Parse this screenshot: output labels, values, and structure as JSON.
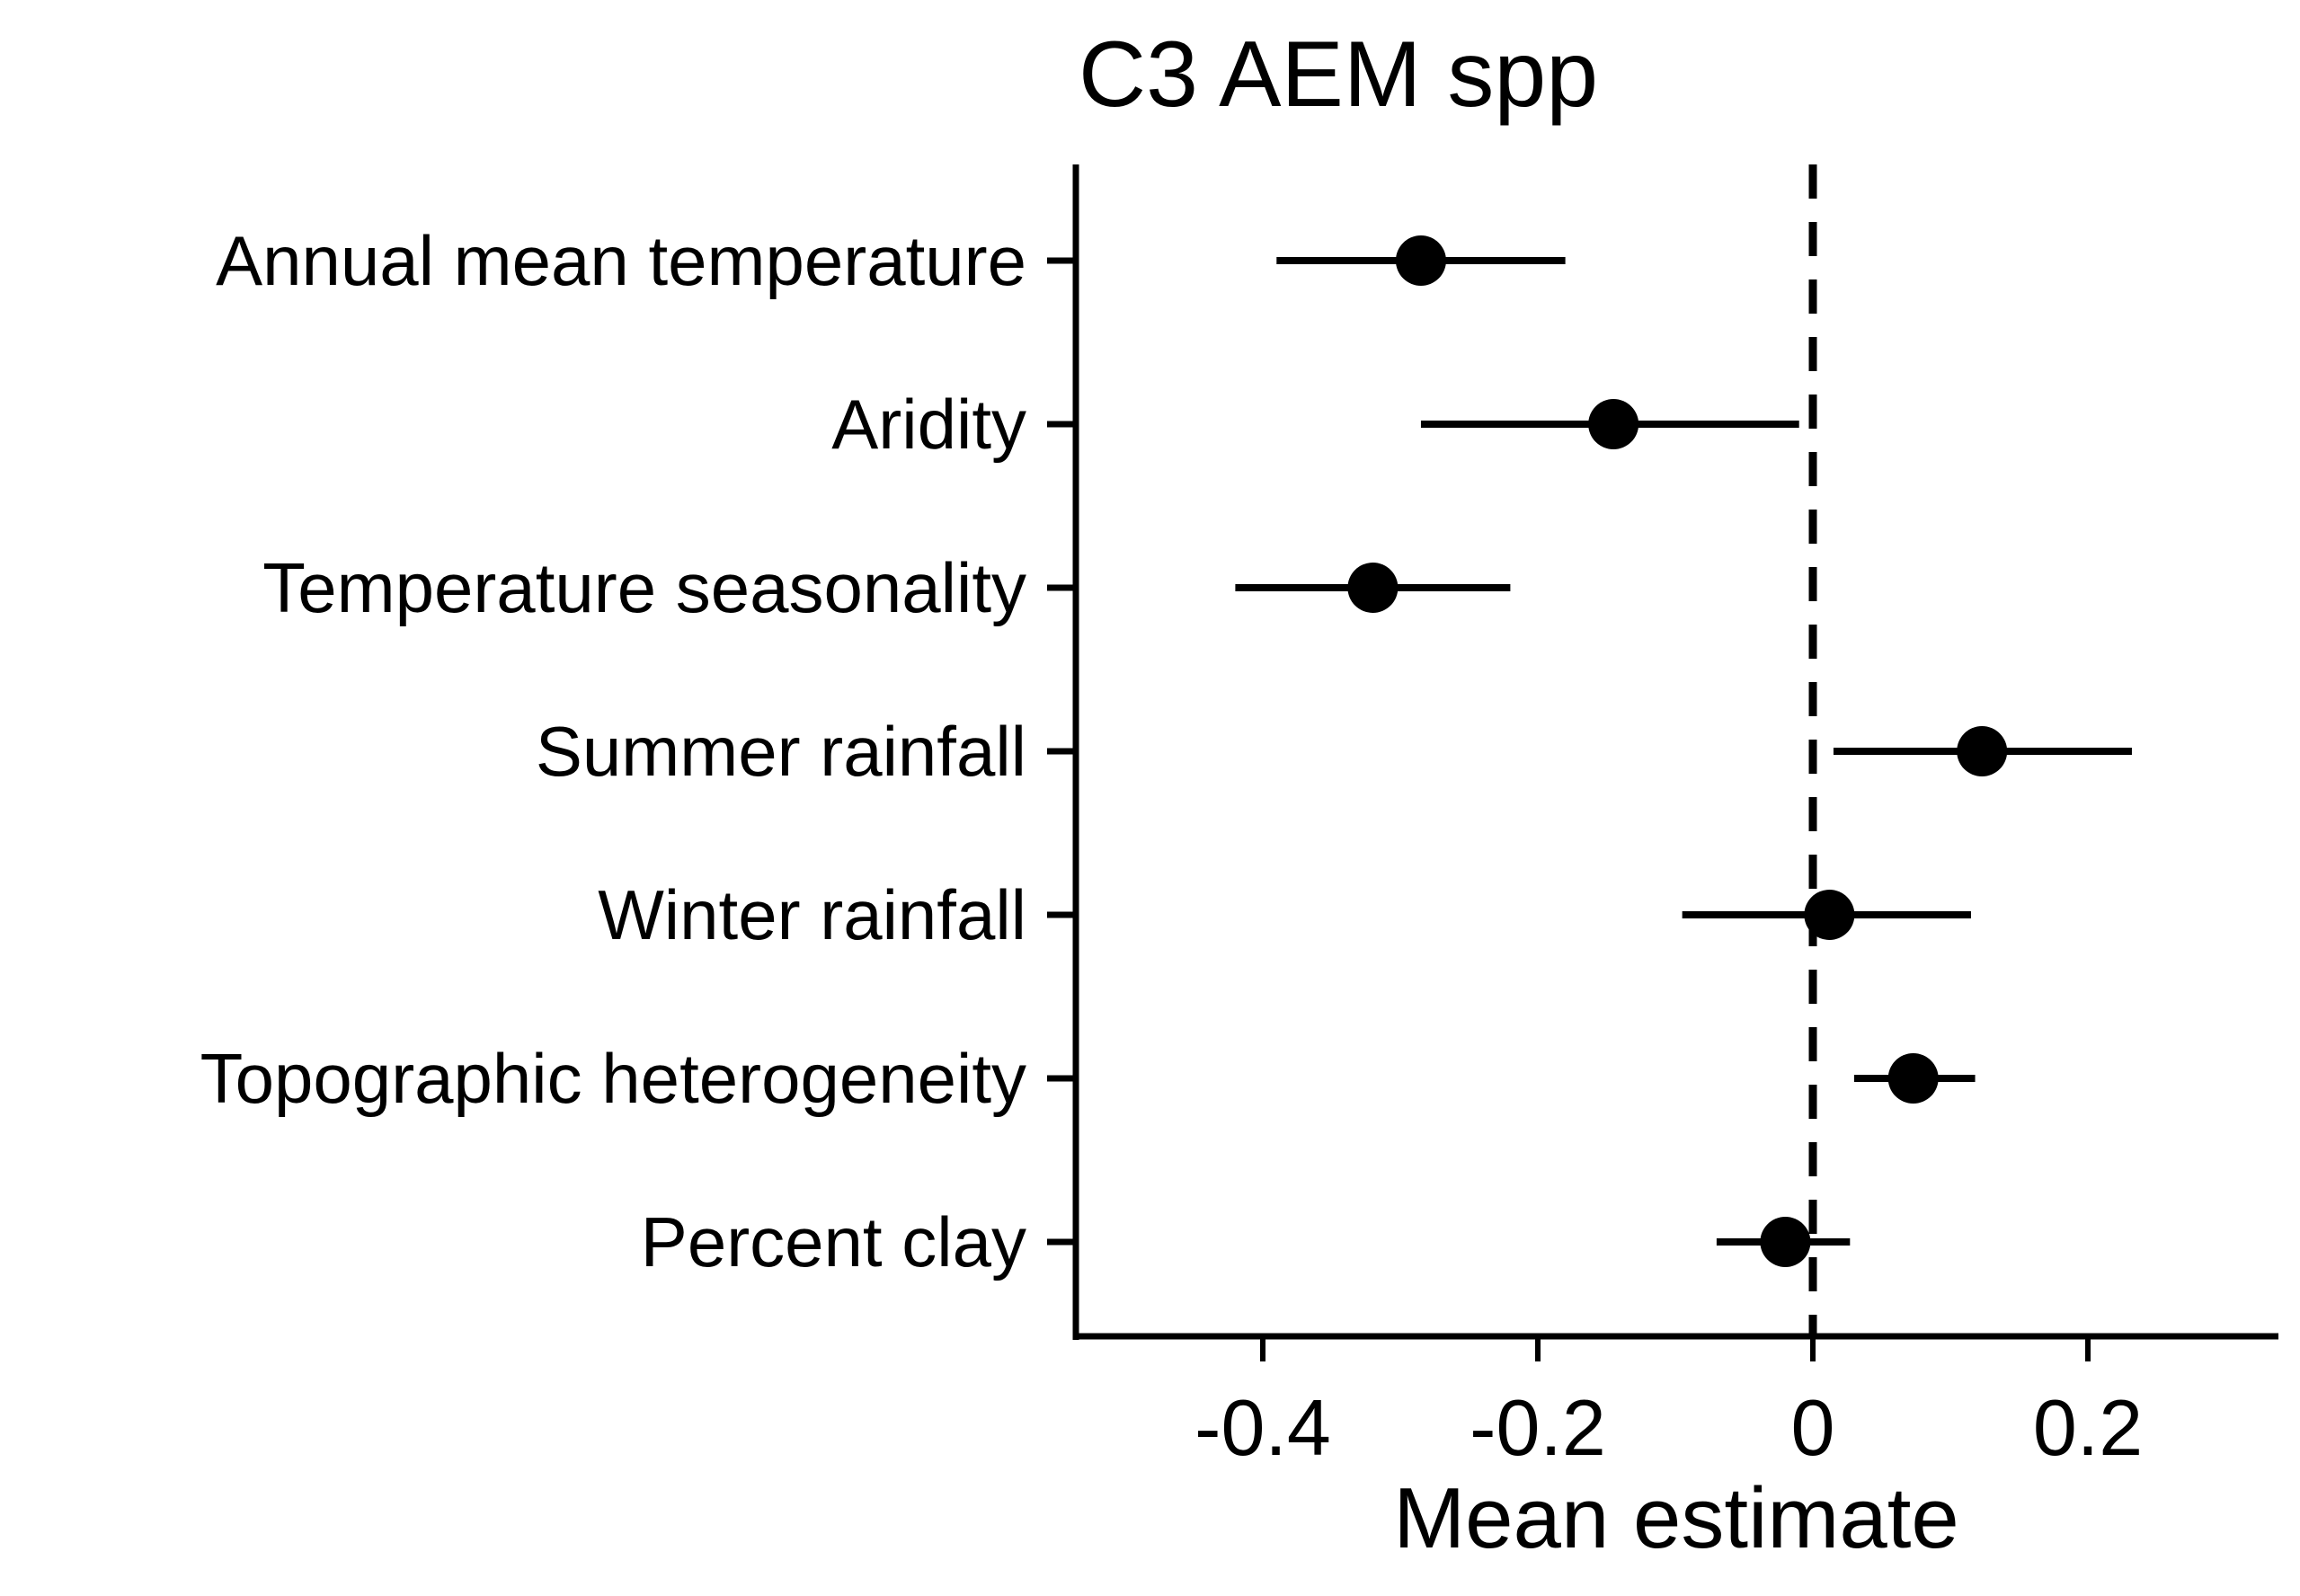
{
  "chart_data": {
    "type": "scatter",
    "subtype": "forest-plot",
    "title": "C3 AEM spp",
    "xlabel": "Mean estimate",
    "ylabel": "",
    "xlim": [
      -0.54,
      0.34
    ],
    "xticks": [
      -0.4,
      -0.2,
      0,
      0.2
    ],
    "xtick_labels": [
      "-0.4",
      "-0.2",
      "0",
      "0.2"
    ],
    "reference_line": {
      "x": 0,
      "style": "dashed"
    },
    "grid": false,
    "legend": "none",
    "color": "#000000",
    "categories": [
      "Annual mean temperature",
      "Aridity",
      "Temperature seasonality",
      "Summer rainfall",
      "Winter rainfall",
      "Topographic heterogeneity",
      "Percent clay"
    ],
    "estimates": [
      -0.285,
      -0.145,
      -0.32,
      0.123,
      0.012,
      0.073,
      -0.02
    ],
    "lower": [
      -0.39,
      -0.285,
      -0.42,
      0.015,
      -0.095,
      0.03,
      -0.07
    ],
    "upper": [
      -0.18,
      -0.01,
      -0.22,
      0.232,
      0.115,
      0.118,
      0.027
    ]
  }
}
